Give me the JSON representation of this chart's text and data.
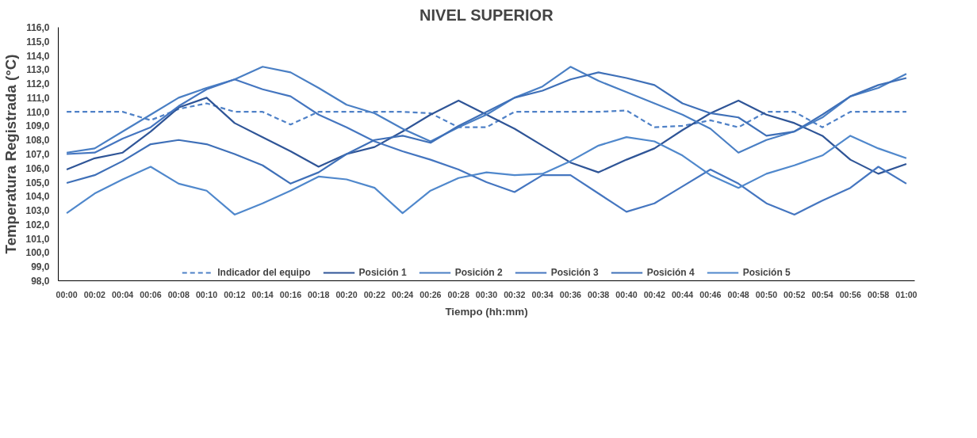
{
  "chart_data": {
    "type": "line",
    "title": "NIVEL SUPERIOR",
    "xlabel": "Tiempo (hh:mm)",
    "ylabel": "Temperatura Registrada (°C)",
    "categories": [
      "00:00",
      "00:02",
      "00:04",
      "00:06",
      "00:08",
      "00:10",
      "00:12",
      "00:14",
      "00:16",
      "00:18",
      "00:20",
      "00:22",
      "00:24",
      "00:26",
      "00:28",
      "00:30",
      "00:32",
      "00:34",
      "00:36",
      "00:38",
      "00:40",
      "00:42",
      "00:44",
      "00:46",
      "00:48",
      "00:50",
      "00:52",
      "00:54",
      "00:56",
      "00:58",
      "01:00"
    ],
    "ylim": [
      98,
      116
    ],
    "yticks": [
      {
        "value": 98,
        "label": "98,0"
      },
      {
        "value": 99,
        "label": "99,0"
      },
      {
        "value": 100,
        "label": "100,0"
      },
      {
        "value": 101,
        "label": "101,0"
      },
      {
        "value": 102,
        "label": "102,0"
      },
      {
        "value": 103,
        "label": "103,0"
      },
      {
        "value": 104,
        "label": "104,0"
      },
      {
        "value": 105,
        "label": "105,0"
      },
      {
        "value": 106,
        "label": "106,0"
      },
      {
        "value": 107,
        "label": "107,0"
      },
      {
        "value": 108,
        "label": "108,0"
      },
      {
        "value": 109,
        "label": "109,0"
      },
      {
        "value": 110,
        "label": "110,0"
      },
      {
        "value": 111,
        "label": "111,0"
      },
      {
        "value": 112,
        "label": "112,0"
      },
      {
        "value": 113,
        "label": "113,0"
      },
      {
        "value": 114,
        "label": "114,0"
      },
      {
        "value": 115,
        "label": "115,0"
      },
      {
        "value": 116,
        "label": "116,0"
      }
    ],
    "grid": false,
    "legend": "bottom",
    "marker": "none",
    "series": [
      {
        "name": "Indicador del equipo",
        "color": "#4f81c7",
        "line_style": "dashed",
        "values": [
          110,
          110,
          110,
          109.4,
          110.2,
          110.6,
          110,
          110,
          109.1,
          110,
          110,
          110,
          110,
          109.9,
          108.9,
          108.9,
          110,
          110,
          110,
          110,
          110.1,
          108.9,
          109,
          109.4,
          108.9,
          110,
          110,
          108.9,
          110,
          110,
          110
        ]
      },
      {
        "name": "Posición 1",
        "color": "#2f5597",
        "line_style": "solid",
        "values": [
          105.9,
          106.7,
          107.1,
          108.6,
          110.3,
          111,
          109.2,
          108.2,
          107.2,
          106.1,
          107,
          107.5,
          108.6,
          109.8,
          110.8,
          109.8,
          108.8,
          107.6,
          106.4,
          105.7,
          106.6,
          107.4,
          108.7,
          109.9,
          110.8,
          109.8,
          109.2,
          108.3,
          106.6,
          105.6,
          106.3
        ]
      },
      {
        "name": "Posición 2",
        "color": "#4a7fc4",
        "line_style": "solid",
        "values": [
          107.1,
          107.4,
          108.6,
          109.8,
          111,
          111.7,
          112.3,
          113.2,
          112.8,
          111.7,
          110.5,
          109.9,
          108.8,
          107.9,
          108.9,
          109.8,
          111,
          111.8,
          113.2,
          112.2,
          111.4,
          110.6,
          109.8,
          108.8,
          107.1,
          108,
          108.6,
          109.6,
          111.1,
          111.7,
          112.7
        ]
      },
      {
        "name": "Posición 3",
        "color": "#4576c0",
        "line_style": "solid",
        "values": [
          107,
          107.1,
          108.1,
          108.9,
          110.4,
          111.6,
          112.3,
          111.6,
          111.1,
          109.8,
          108.9,
          107.9,
          107.2,
          106.6,
          105.9,
          105,
          104.3,
          105.5,
          105.5,
          104.2,
          102.9,
          103.5,
          104.7,
          105.9,
          104.9,
          103.5,
          102.7,
          103.7,
          104.6,
          106.1,
          104.9
        ]
      },
      {
        "name": "Posición 4",
        "color": "#3f70b8",
        "line_style": "solid",
        "values": [
          104.95,
          105.5,
          106.5,
          107.7,
          108,
          107.7,
          107,
          106.2,
          104.9,
          105.7,
          107,
          108,
          108.3,
          107.8,
          109,
          110,
          111,
          111.5,
          112.3,
          112.8,
          112.4,
          111.9,
          110.6,
          109.9,
          109.6,
          108.3,
          108.6,
          109.8,
          111.1,
          111.9,
          112.4
        ]
      },
      {
        "name": "Posición 5",
        "color": "#5088cc",
        "line_style": "solid",
        "values": [
          102.8,
          104.2,
          105.2,
          106.1,
          104.9,
          104.4,
          102.7,
          103.5,
          104.4,
          105.4,
          105.2,
          104.6,
          102.8,
          104.4,
          105.3,
          105.7,
          105.5,
          105.6,
          106.5,
          107.6,
          108.2,
          107.9,
          106.9,
          105.5,
          104.6,
          105.6,
          106.2,
          106.9,
          108.3,
          107.4,
          106.7
        ]
      }
    ]
  }
}
